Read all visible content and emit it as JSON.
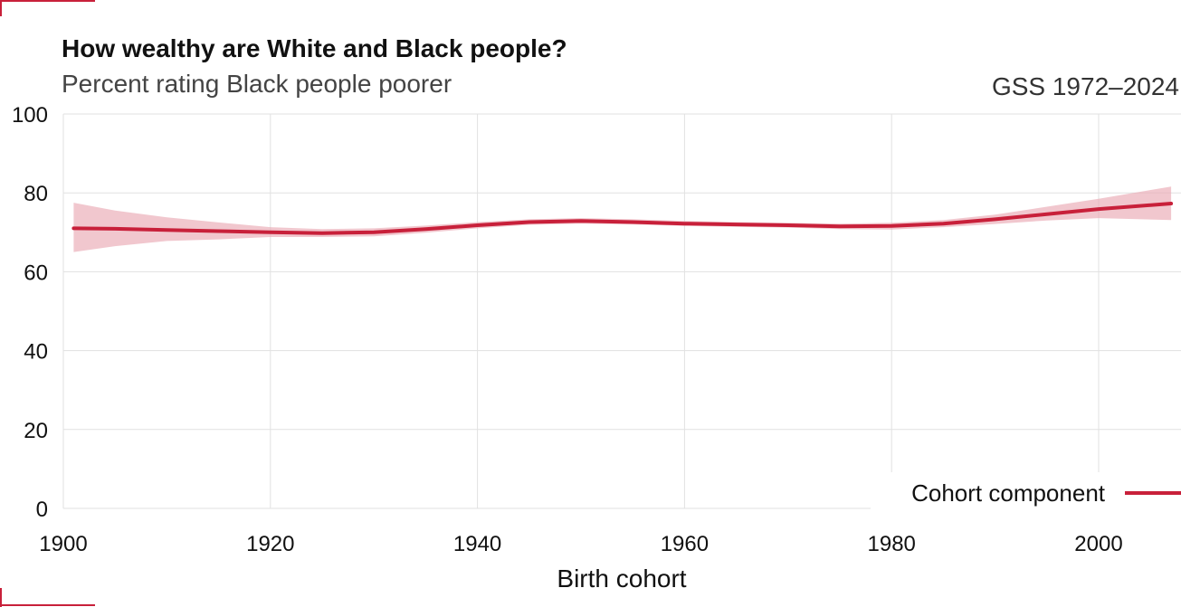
{
  "chart_data": {
    "type": "line",
    "title": "How wealthy are White and Black people?",
    "subtitle": "Percent rating Black people poorer",
    "source": "GSS 1972–2024",
    "xlabel": "Birth cohort",
    "ylabel": "",
    "xlim": [
      1900,
      2008
    ],
    "ylim": [
      0,
      100
    ],
    "x_ticks": [
      1900,
      1920,
      1940,
      1960,
      1980,
      2000
    ],
    "y_ticks": [
      0,
      20,
      40,
      60,
      80,
      100
    ],
    "grid": true,
    "legend_position": "bottom-right",
    "series": [
      {
        "name": "Cohort component",
        "color": "#c8203a",
        "band_color": "#e9a9b3",
        "x": [
          1901,
          1905,
          1910,
          1915,
          1920,
          1925,
          1930,
          1935,
          1940,
          1945,
          1950,
          1955,
          1960,
          1965,
          1970,
          1975,
          1980,
          1985,
          1990,
          1995,
          2000,
          2007
        ],
        "y": [
          71.0,
          70.9,
          70.6,
          70.3,
          70.0,
          69.8,
          70.0,
          70.8,
          71.8,
          72.6,
          72.9,
          72.6,
          72.2,
          72.0,
          71.8,
          71.5,
          71.6,
          72.2,
          73.3,
          74.6,
          75.9,
          77.3
        ],
        "lower": [
          65.0,
          66.5,
          67.8,
          68.2,
          68.8,
          68.8,
          69.0,
          69.9,
          71.0,
          71.9,
          72.2,
          72.0,
          71.6,
          71.4,
          71.2,
          70.8,
          70.7,
          71.3,
          72.1,
          73.0,
          73.6,
          73.1
        ],
        "upper": [
          77.5,
          75.5,
          73.8,
          72.5,
          71.3,
          70.8,
          71.0,
          71.7,
          72.6,
          73.3,
          73.6,
          73.3,
          72.9,
          72.6,
          72.4,
          72.2,
          72.4,
          73.1,
          74.5,
          76.5,
          78.5,
          81.6
        ]
      }
    ]
  }
}
